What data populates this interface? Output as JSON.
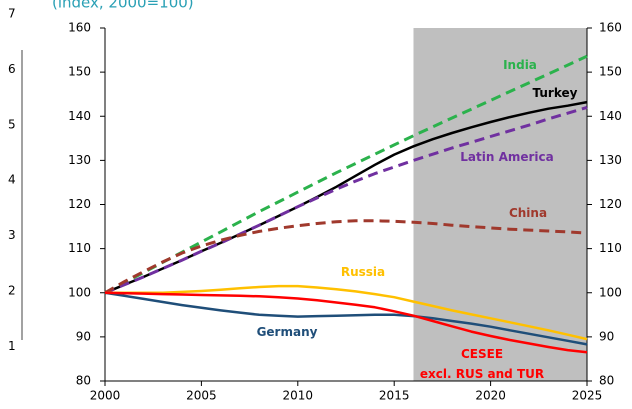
{
  "chart_data": [
    {
      "type": "line",
      "subtitle": "(index, 2000=100)",
      "x": [
        2000,
        2001,
        2002,
        2003,
        2004,
        2005,
        2006,
        2007,
        2008,
        2009,
        2010,
        2011,
        2012,
        2013,
        2014,
        2015,
        2016,
        2017,
        2018,
        2019,
        2020,
        2021,
        2022,
        2023,
        2024,
        2025
      ],
      "xlim": [
        2000,
        2025
      ],
      "xticks": [
        2000,
        2005,
        2010,
        2015,
        2020,
        2025
      ],
      "ylim": [
        80,
        160
      ],
      "yticks": [
        80,
        90,
        100,
        110,
        120,
        130,
        140,
        150,
        160
      ],
      "y2lim": [
        80,
        160
      ],
      "y2ticks": [
        80,
        90,
        100,
        110,
        120,
        130,
        140,
        150,
        160
      ],
      "shaded_from": 2016,
      "shade_color": "#bfbfbf",
      "series": [
        {
          "name": "India",
          "color": "#2bb24c",
          "dashed": true,
          "values": [
            100,
            102.3,
            104.6,
            106.9,
            109.2,
            111.5,
            113.8,
            116.1,
            118.4,
            120.6,
            122.8,
            125,
            127.2,
            129.3,
            131.4,
            133.5,
            135.6,
            137.6,
            139.6,
            141.6,
            143.6,
            145.6,
            147.6,
            149.6,
            151.6,
            153.6
          ]
        },
        {
          "name": "Turkey",
          "color": "#000000",
          "dashed": false,
          "values": [
            100,
            101.8,
            103.6,
            105.5,
            107.4,
            109.4,
            111.3,
            113.3,
            115.3,
            117.4,
            119.5,
            121.7,
            124,
            126.5,
            129,
            131.3,
            133.2,
            134.8,
            136.2,
            137.5,
            138.7,
            139.8,
            140.8,
            141.7,
            142.4,
            143.2
          ]
        },
        {
          "name": "Latin America",
          "color": "#7030a0",
          "dashed": true,
          "values": [
            100,
            101.8,
            103.6,
            105.5,
            107.4,
            109.4,
            111.3,
            113.3,
            115.3,
            117.4,
            119.5,
            121.5,
            123.5,
            125.3,
            127,
            128.5,
            130,
            131.4,
            132.8,
            134.1,
            135.4,
            136.7,
            138,
            139.4,
            140.7,
            142
          ]
        },
        {
          "name": "China",
          "color": "#a0392d",
          "dashed": true,
          "values": [
            100,
            102.5,
            104.8,
            107,
            109,
            110.6,
            111.9,
            113,
            113.9,
            114.6,
            115.2,
            115.7,
            116.1,
            116.3,
            116.3,
            116.2,
            116,
            115.7,
            115.3,
            115,
            114.7,
            114.4,
            114.2,
            114,
            113.8,
            113.5
          ]
        },
        {
          "name": "Russia",
          "color": "#ffc000",
          "dashed": false,
          "values": [
            100,
            100,
            100,
            100,
            100.2,
            100.4,
            100.7,
            101,
            101.3,
            101.5,
            101.5,
            101.2,
            100.8,
            100.3,
            99.7,
            99,
            98,
            97,
            96,
            95.1,
            94.2,
            93.3,
            92.4,
            91.5,
            90.5,
            89.5
          ]
        },
        {
          "name": "Germany",
          "color": "#1f4e79",
          "dashed": false,
          "values": [
            100,
            99.3,
            98.6,
            97.9,
            97.2,
            96.6,
            96,
            95.5,
            95,
            94.8,
            94.6,
            94.7,
            94.8,
            94.9,
            95,
            95,
            94.7,
            94.2,
            93.6,
            93,
            92.3,
            91.5,
            90.7,
            89.9,
            89.1,
            88.3
          ]
        },
        {
          "name": "CESEE\nexcl. RUS and TUR",
          "color": "#ff0000",
          "dashed": false,
          "values": [
            100,
            99.9,
            99.8,
            99.7,
            99.6,
            99.5,
            99.4,
            99.3,
            99.2,
            99,
            98.7,
            98.3,
            97.8,
            97.3,
            96.7,
            95.8,
            94.8,
            93.6,
            92.4,
            91.2,
            90.2,
            89.3,
            88.5,
            87.7,
            87,
            86.5
          ]
        }
      ]
    },
    {
      "type": "axis-fragment",
      "ylim": [
        0,
        7.25
      ],
      "yticks": [
        1,
        2,
        3,
        4,
        5,
        6,
        7
      ]
    }
  ]
}
